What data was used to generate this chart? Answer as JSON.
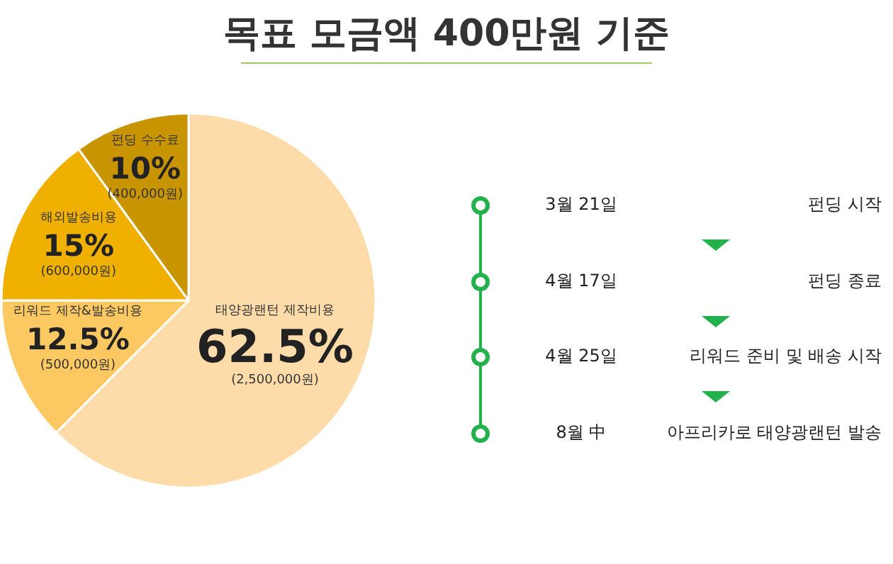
{
  "chart_data": [
    {
      "type": "pie",
      "title": "목표 모금액 400만원 기준",
      "categories": [
        "태양광랜턴 제작비용",
        "리워드 제작&발송비용",
        "해외발송비용",
        "펀딩 수수료"
      ],
      "values": [
        62.5,
        12.5,
        15,
        10
      ],
      "colors": [
        "#fedcaa",
        "#fcc862",
        "#f0b000",
        "#c89400"
      ],
      "value_labels": [
        "62.5%\n(2,500,000원)",
        "12.5%\n(500,000원)",
        "15%\n(600,000원)",
        "10%\n(400,000원)"
      ],
      "legend": false
    },
    {
      "type": "other",
      "annotations": [
        "3월 21일",
        "펀딩 시작",
        "4월 17일",
        "펀딩 종료",
        "4월 25일",
        "리워드 준비 및 배송 시작",
        "8월 中",
        "아프리카로 태양광랜턴 발송"
      ]
    }
  ]
}
